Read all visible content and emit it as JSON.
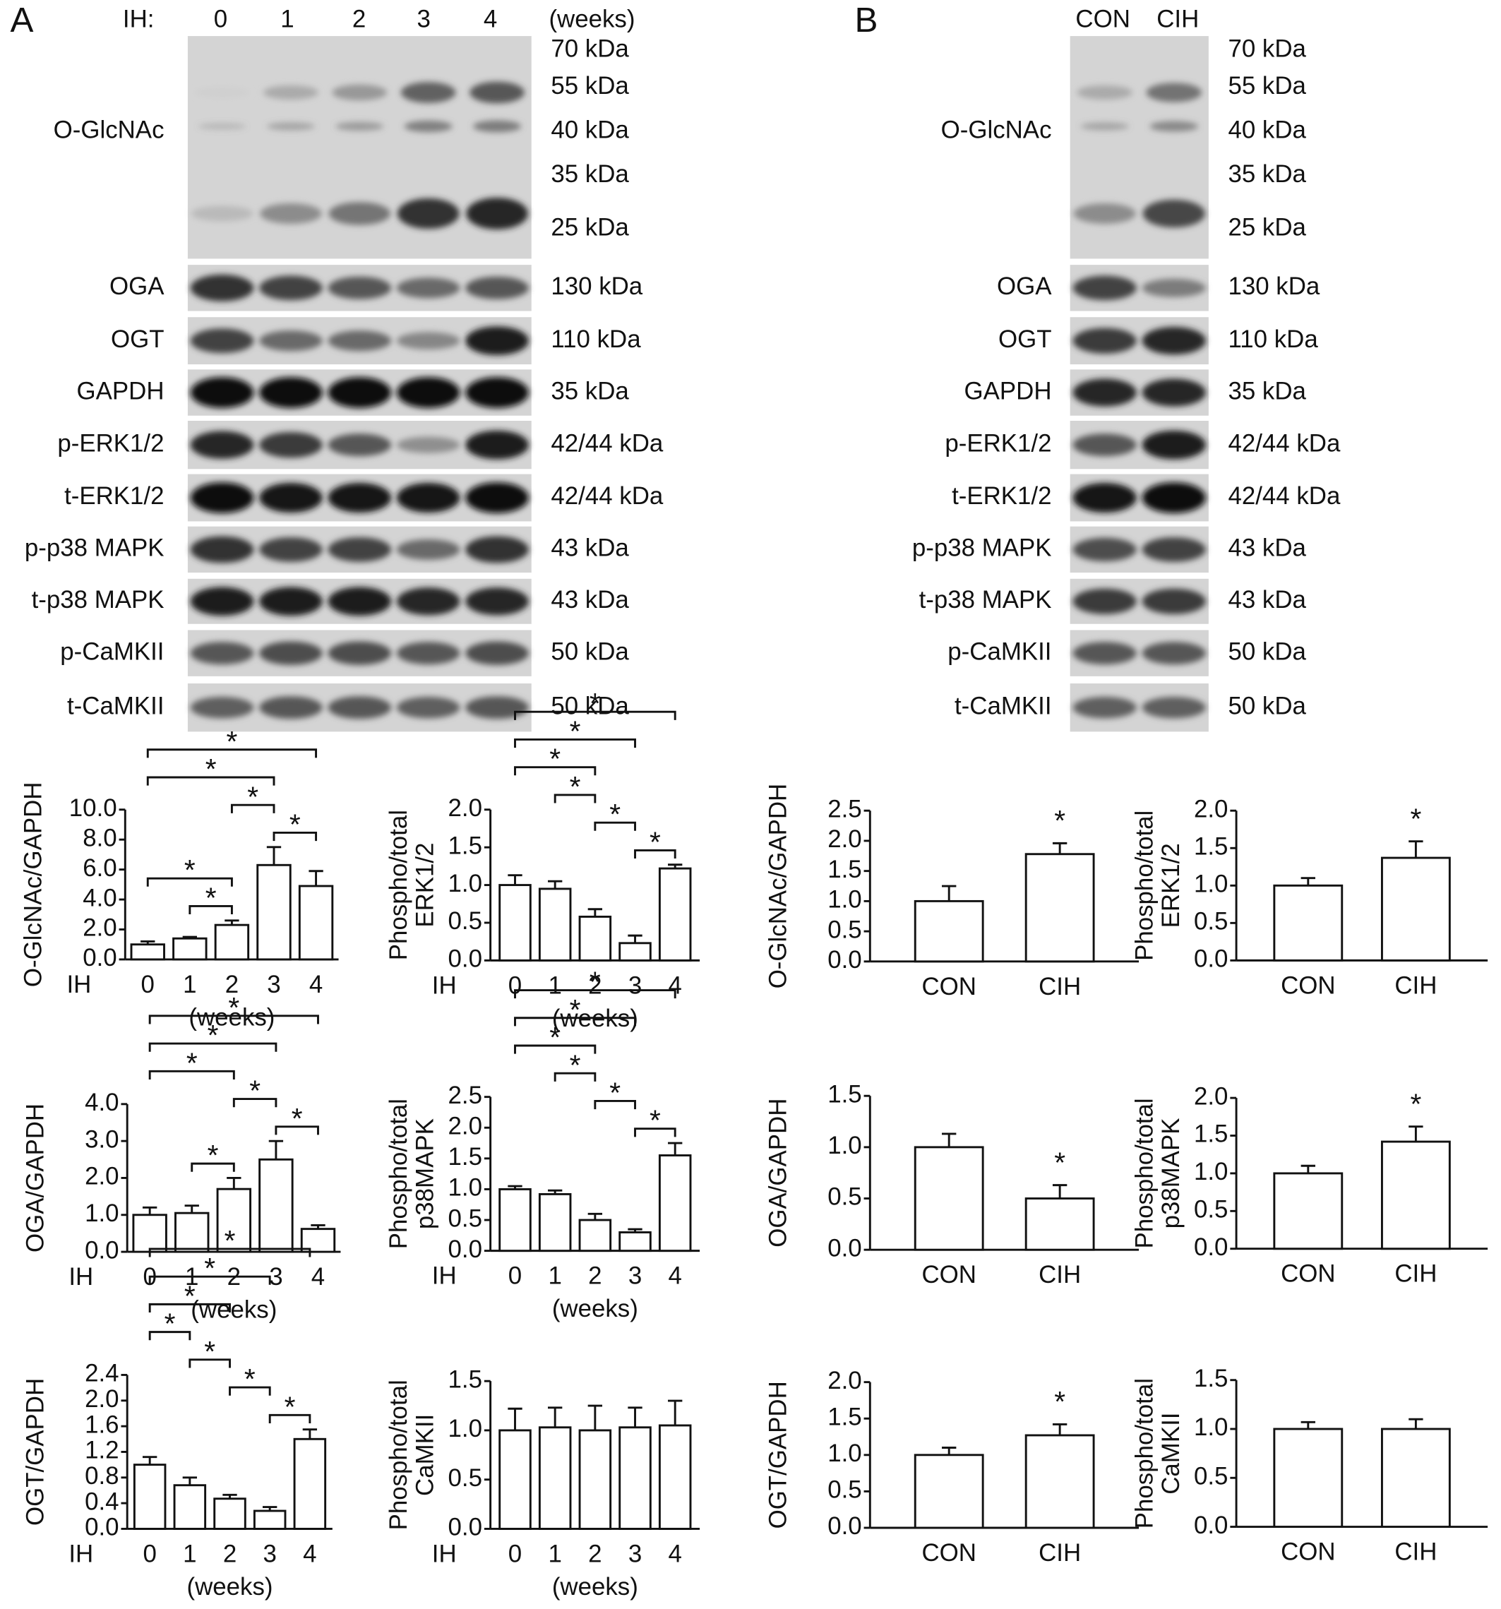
{
  "blots": [
    {
      "label": "A",
      "lane_title": "IH:",
      "lanes": [
        "0",
        "1",
        "2",
        "3",
        "4"
      ],
      "lane_unit": "(weeks)",
      "rows": [
        {
          "name": "O-GlcNAc",
          "markers": [
            "70 kDa",
            "55 kDa",
            "40 kDa",
            "35 kDa",
            "25 kDa"
          ]
        },
        {
          "name": "OGA",
          "kda": "130 kDa"
        },
        {
          "name": "OGT",
          "kda": "110 kDa"
        },
        {
          "name": "GAPDH",
          "kda": "35 kDa"
        },
        {
          "name": "p-ERK1/2",
          "kda": "42/44 kDa"
        },
        {
          "name": "t-ERK1/2",
          "kda": "42/44 kDa"
        },
        {
          "name": "p-p38 MAPK",
          "kda": "43 kDa"
        },
        {
          "name": "t-p38 MAPK",
          "kda": "43 kDa"
        },
        {
          "name": "p-CaMKII",
          "kda": "50 kDa"
        },
        {
          "name": "t-CaMKII",
          "kda": "50 kDa"
        }
      ]
    },
    {
      "label": "B",
      "lanes": [
        "CON",
        "CIH"
      ],
      "rows": [
        {
          "name": "O-GlcNAc",
          "markers": [
            "70 kDa",
            "55 kDa",
            "40 kDa",
            "35 kDa",
            "25 kDa"
          ]
        },
        {
          "name": "OGA",
          "kda": "130 kDa"
        },
        {
          "name": "OGT",
          "kda": "110 kDa"
        },
        {
          "name": "GAPDH",
          "kda": "35 kDa"
        },
        {
          "name": "p-ERK1/2",
          "kda": "42/44 kDa"
        },
        {
          "name": "t-ERK1/2",
          "kda": "42/44 kDa"
        },
        {
          "name": "p-p38 MAPK",
          "kda": "43 kDa"
        },
        {
          "name": "t-p38 MAPK",
          "kda": "43 kDa"
        },
        {
          "name": "p-CaMKII",
          "kda": "50 kDa"
        },
        {
          "name": "t-CaMKII",
          "kda": "50 kDa"
        }
      ]
    }
  ],
  "chart_data": [
    {
      "type": "bar",
      "ylabel": [
        "O-GlcNAc/GAPDH"
      ],
      "xlabel_prefix": "IH",
      "xlabel": "(weeks)",
      "categories": [
        "0",
        "1",
        "2",
        "3",
        "4"
      ],
      "values": [
        1.0,
        1.4,
        2.3,
        6.3,
        4.9
      ],
      "errors": [
        0.2,
        0.1,
        0.3,
        1.2,
        1.0
      ],
      "color": "#ffffff",
      "ylim": [
        0,
        10
      ],
      "yticks": [
        {
          "value": 0,
          "label": "0.0"
        },
        {
          "value": 2,
          "label": "2.0"
        },
        {
          "value": 4,
          "label": "4.0"
        },
        {
          "value": 6,
          "label": "6.0"
        },
        {
          "value": 8,
          "label": "8.0"
        },
        {
          "value": 10,
          "label": "10.0"
        }
      ],
      "significance": [
        {
          "from": 0,
          "to": 4,
          "label": "*"
        },
        {
          "from": 0,
          "to": 3,
          "label": "*"
        },
        {
          "from": 2,
          "to": 3,
          "label": "*"
        },
        {
          "from": 3,
          "to": 4,
          "label": "*"
        },
        {
          "from": 0,
          "to": 2,
          "label": "*"
        },
        {
          "from": 1,
          "to": 2,
          "label": "*"
        }
      ]
    },
    {
      "type": "bar",
      "ylabel": [
        "Phospho/total",
        "ERK1/2"
      ],
      "xlabel_prefix": "IH",
      "xlabel": "(weeks)",
      "categories": [
        "0",
        "1",
        "2",
        "3",
        "4"
      ],
      "values": [
        1.0,
        0.95,
        0.58,
        0.23,
        1.22
      ],
      "errors": [
        0.13,
        0.1,
        0.1,
        0.1,
        0.05
      ],
      "color": "#ffffff",
      "ylim": [
        0,
        2
      ],
      "yticks": [
        {
          "value": 0,
          "label": "0.0"
        },
        {
          "value": 0.5,
          "label": "0.5"
        },
        {
          "value": 1,
          "label": "1.0"
        },
        {
          "value": 1.5,
          "label": "1.5"
        },
        {
          "value": 2,
          "label": "2.0"
        }
      ],
      "significance": [
        {
          "from": 0,
          "to": 4,
          "label": "*"
        },
        {
          "from": 0,
          "to": 3,
          "label": "*"
        },
        {
          "from": 0,
          "to": 2,
          "label": "*"
        },
        {
          "from": 1,
          "to": 2,
          "label": "*"
        },
        {
          "from": 2,
          "to": 3,
          "label": "*"
        },
        {
          "from": 3,
          "to": 4,
          "label": "*"
        }
      ]
    },
    {
      "type": "bar",
      "ylabel": [
        "OGA/GAPDH"
      ],
      "xlabel_prefix": "IH",
      "xlabel": "(weeks)",
      "categories": [
        "0",
        "1",
        "2",
        "3",
        "4"
      ],
      "values": [
        1.0,
        1.05,
        1.7,
        2.5,
        0.62
      ],
      "errors": [
        0.2,
        0.2,
        0.3,
        0.5,
        0.1
      ],
      "color": "#ffffff",
      "ylim": [
        0,
        4
      ],
      "yticks": [
        {
          "value": 0,
          "label": "0.0"
        },
        {
          "value": 1,
          "label": "1.0"
        },
        {
          "value": 2,
          "label": "2.0"
        },
        {
          "value": 3,
          "label": "3.0"
        },
        {
          "value": 4,
          "label": "4.0"
        }
      ],
      "significance": [
        {
          "from": 0,
          "to": 4,
          "label": "*"
        },
        {
          "from": 0,
          "to": 3,
          "label": "*"
        },
        {
          "from": 0,
          "to": 2,
          "label": "*"
        },
        {
          "from": 2,
          "to": 3,
          "label": "*"
        },
        {
          "from": 1,
          "to": 2,
          "label": "*"
        },
        {
          "from": 3,
          "to": 4,
          "label": "*"
        }
      ]
    },
    {
      "type": "bar",
      "ylabel": [
        "Phospho/total",
        "p38MAPK"
      ],
      "xlabel_prefix": "IH",
      "xlabel": "(weeks)",
      "categories": [
        "0",
        "1",
        "2",
        "3",
        "4"
      ],
      "values": [
        1.0,
        0.92,
        0.5,
        0.3,
        1.55
      ],
      "errors": [
        0.05,
        0.06,
        0.1,
        0.05,
        0.2
      ],
      "color": "#ffffff",
      "ylim": [
        0,
        2.5
      ],
      "yticks": [
        {
          "value": 0,
          "label": "0.0"
        },
        {
          "value": 0.5,
          "label": "0.5"
        },
        {
          "value": 1,
          "label": "1.0"
        },
        {
          "value": 1.5,
          "label": "1.5"
        },
        {
          "value": 2,
          "label": "2.0"
        },
        2.5
      ],
      "significance": [
        {
          "from": 0,
          "to": 4,
          "label": "*"
        },
        {
          "from": 0,
          "to": 3,
          "label": "*"
        },
        {
          "from": 0,
          "to": 2,
          "label": "*"
        },
        {
          "from": 1,
          "to": 2,
          "label": "*"
        },
        {
          "from": 2,
          "to": 3,
          "label": "*"
        },
        {
          "from": 3,
          "to": 4,
          "label": "*"
        }
      ]
    },
    {
      "type": "bar",
      "ylabel": [
        "OGT/GAPDH"
      ],
      "xlabel_prefix": "IH",
      "xlabel": "(weeks)",
      "categories": [
        "0",
        "1",
        "2",
        "3",
        "4"
      ],
      "values": [
        1.0,
        0.68,
        0.47,
        0.28,
        1.4
      ],
      "errors": [
        0.12,
        0.12,
        0.06,
        0.06,
        0.15
      ],
      "color": "#ffffff",
      "ylim": [
        0,
        2.4
      ],
      "yticks": [
        {
          "value": 0,
          "label": "0.0"
        },
        0.4,
        0.8,
        1.2,
        1.6,
        {
          "value": 2,
          "label": "2.0"
        },
        2.4
      ],
      "significance": [
        {
          "from": 0,
          "to": 4,
          "label": "*"
        },
        {
          "from": 0,
          "to": 3,
          "label": "*"
        },
        {
          "from": 0,
          "to": 2,
          "label": "*"
        },
        {
          "from": 0,
          "to": 1,
          "label": "*"
        },
        {
          "from": 1,
          "to": 2,
          "label": "*"
        },
        {
          "from": 2,
          "to": 3,
          "label": "*"
        },
        {
          "from": 3,
          "to": 4,
          "label": "*"
        }
      ]
    },
    {
      "type": "bar",
      "ylabel": [
        "Phospho/total",
        "CaMKII"
      ],
      "xlabel_prefix": "IH",
      "xlabel": "(weeks)",
      "categories": [
        "0",
        "1",
        "2",
        "3",
        "4"
      ],
      "values": [
        1.0,
        1.03,
        1.0,
        1.03,
        1.05
      ],
      "errors": [
        0.22,
        0.2,
        0.25,
        0.2,
        0.25
      ],
      "color": "#ffffff",
      "ylim": [
        0,
        1.5
      ],
      "yticks": [
        {
          "value": 0,
          "label": "0.0"
        },
        0.5,
        {
          "value": 1,
          "label": "1.0"
        },
        1.5
      ]
    },
    {
      "type": "bar",
      "ylabel": [
        "O-GlcNAc/GAPDH"
      ],
      "categories": [
        "CON",
        "CIH"
      ],
      "values": [
        1.0,
        1.78
      ],
      "errors": [
        0.25,
        0.18
      ],
      "color": "#ffffff",
      "ylim": [
        0,
        2.5
      ],
      "yticks": [
        {
          "value": 0,
          "label": "0.0"
        },
        0.5,
        {
          "value": 1,
          "label": "1.0"
        },
        1.5,
        {
          "value": 2,
          "label": "2.0"
        },
        2.5
      ],
      "significance": [
        {
          "from": 1,
          "to": 1,
          "label": "*"
        }
      ]
    },
    {
      "type": "bar",
      "ylabel": [
        "Phospho/total",
        "ERK1/2"
      ],
      "categories": [
        "CON",
        "CIH"
      ],
      "values": [
        1.0,
        1.37
      ],
      "errors": [
        0.1,
        0.22
      ],
      "color": "#ffffff",
      "ylim": [
        0,
        2
      ],
      "yticks": [
        {
          "value": 0,
          "label": "0.0"
        },
        0.5,
        {
          "value": 1,
          "label": "1.0"
        },
        1.5,
        {
          "value": 2,
          "label": "2.0"
        }
      ],
      "significance": [
        {
          "from": 1,
          "to": 1,
          "label": "*"
        }
      ]
    },
    {
      "type": "bar",
      "ylabel": [
        "OGA/GAPDH"
      ],
      "categories": [
        "CON",
        "CIH"
      ],
      "values": [
        1.0,
        0.5
      ],
      "errors": [
        0.13,
        0.13
      ],
      "color": "#ffffff",
      "ylim": [
        0,
        1.5
      ],
      "yticks": [
        {
          "value": 0,
          "label": "0.0"
        },
        0.5,
        {
          "value": 1,
          "label": "1.0"
        },
        1.5
      ],
      "significance": [
        {
          "from": 1,
          "to": 1,
          "label": "*"
        }
      ]
    },
    {
      "type": "bar",
      "ylabel": [
        "Phospho/total",
        "p38MAPK"
      ],
      "categories": [
        "CON",
        "CIH"
      ],
      "values": [
        1.0,
        1.42
      ],
      "errors": [
        0.1,
        0.2
      ],
      "color": "#ffffff",
      "ylim": [
        0,
        2
      ],
      "yticks": [
        {
          "value": 0,
          "label": "0.0"
        },
        0.5,
        {
          "value": 1,
          "label": "1.0"
        },
        1.5,
        {
          "value": 2,
          "label": "2.0"
        }
      ],
      "significance": [
        {
          "from": 1,
          "to": 1,
          "label": "*"
        }
      ]
    },
    {
      "type": "bar",
      "ylabel": [
        "OGT/GAPDH"
      ],
      "categories": [
        "CON",
        "CIH"
      ],
      "values": [
        1.0,
        1.27
      ],
      "errors": [
        0.1,
        0.15
      ],
      "color": "#ffffff",
      "ylim": [
        0,
        2
      ],
      "yticks": [
        {
          "value": 0,
          "label": "0.0"
        },
        0.5,
        {
          "value": 1,
          "label": "1.0"
        },
        1.5,
        {
          "value": 2,
          "label": "2.0"
        }
      ],
      "significance": [
        {
          "from": 1,
          "to": 1,
          "label": "*"
        }
      ]
    },
    {
      "type": "bar",
      "ylabel": [
        "Phospho/total",
        "CaMKII"
      ],
      "categories": [
        "CON",
        "CIH"
      ],
      "values": [
        1.0,
        1.0
      ],
      "errors": [
        0.07,
        0.1
      ],
      "color": "#ffffff",
      "ylim": [
        0,
        1.5
      ],
      "yticks": [
        {
          "value": 0,
          "label": "0.0"
        },
        0.5,
        {
          "value": 1,
          "label": "1.0"
        },
        1.5
      ]
    }
  ]
}
